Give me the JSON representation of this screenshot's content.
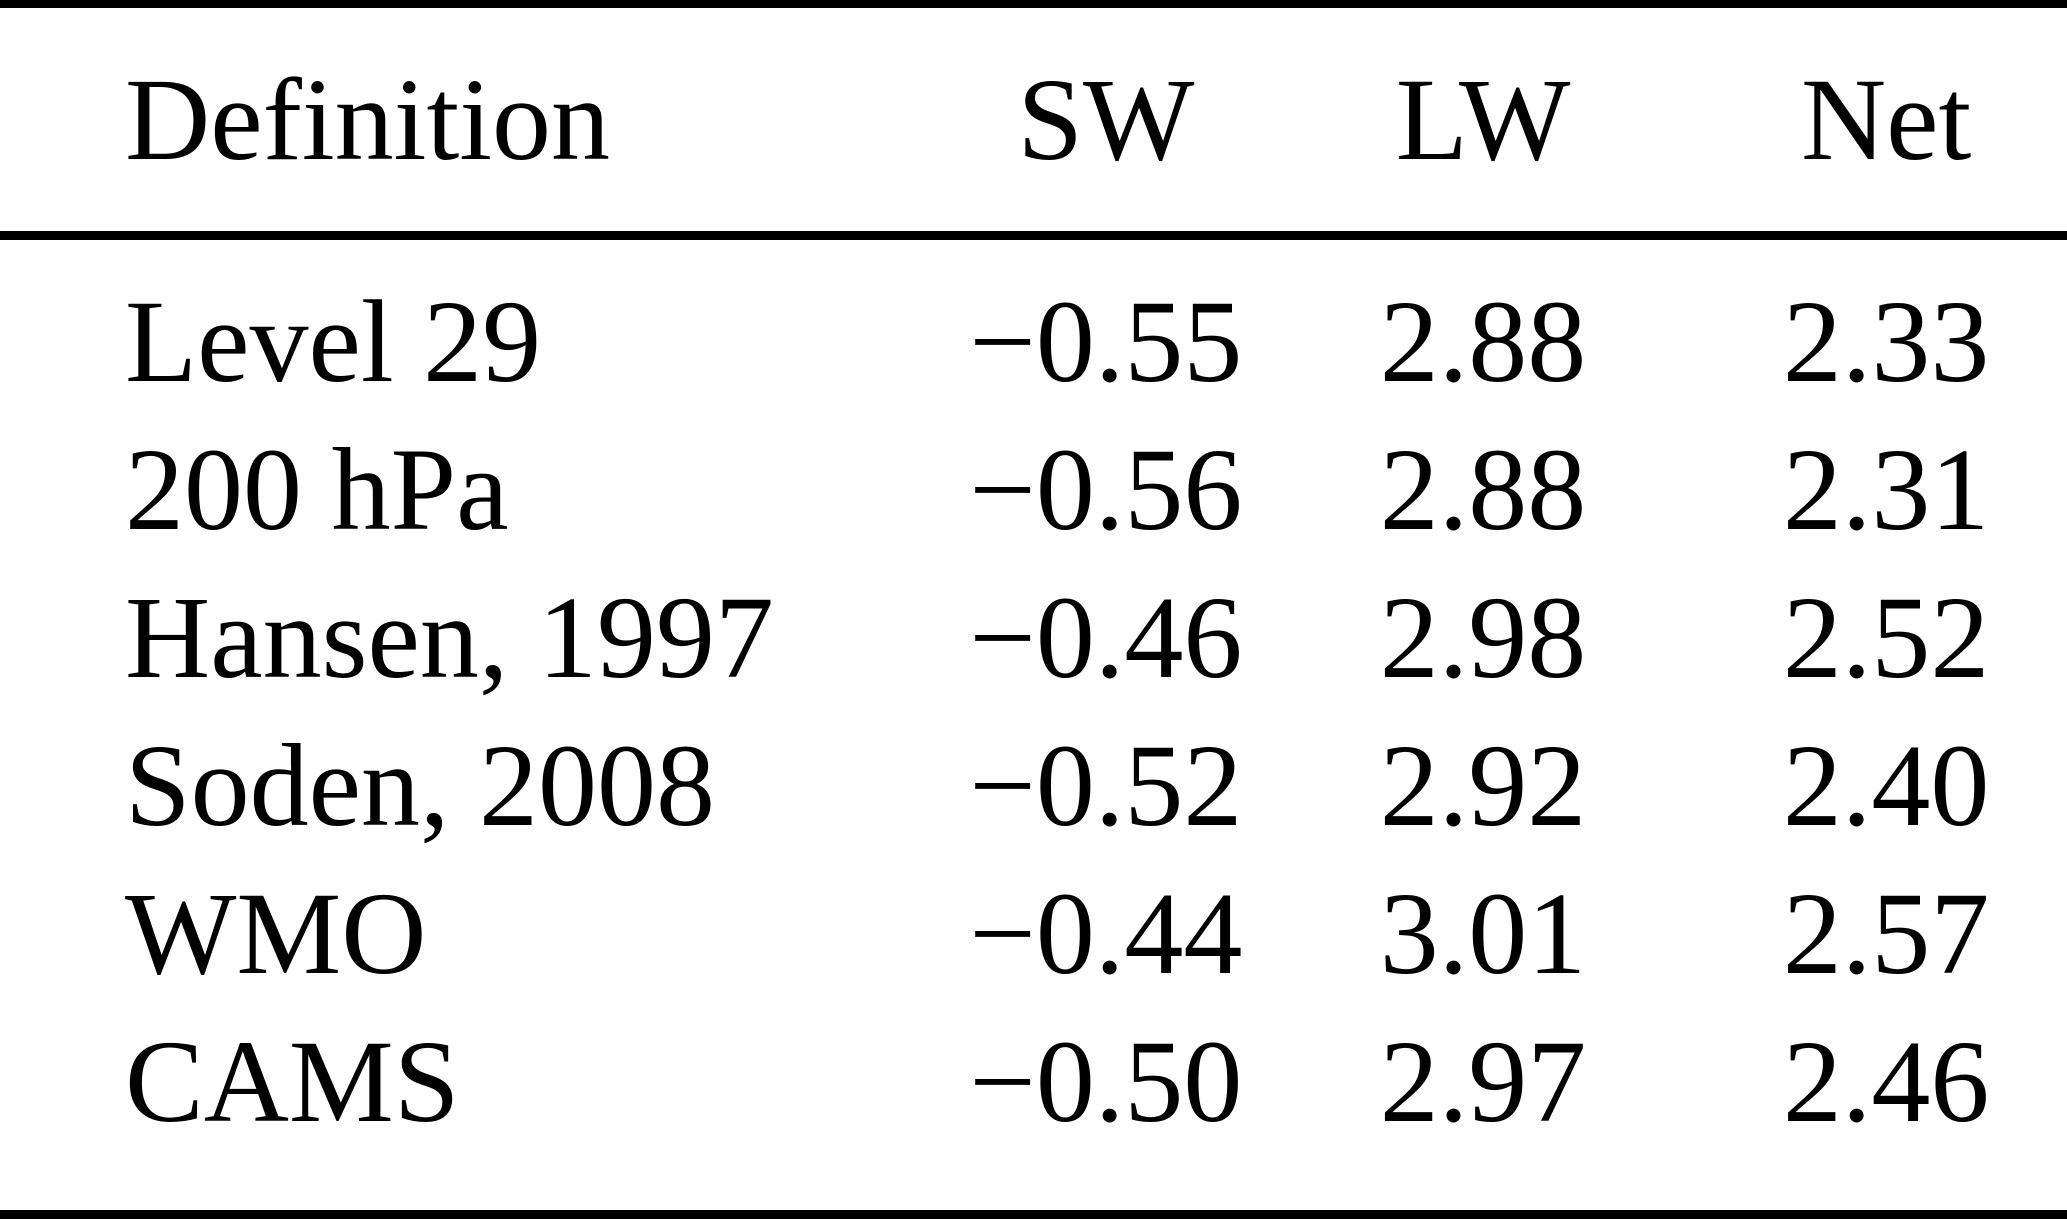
{
  "table": {
    "columns": [
      "Definition",
      "SW",
      "LW",
      "Net"
    ],
    "rows": [
      {
        "definition": "Level 29",
        "sw": "−0.55",
        "lw": "2.88",
        "net": "2.33"
      },
      {
        "definition": "200 hPa",
        "sw": "−0.56",
        "lw": "2.88",
        "net": "2.31"
      },
      {
        "definition": "Hansen, 1997",
        "sw": "−0.46",
        "lw": "2.98",
        "net": "2.52"
      },
      {
        "definition": "Soden, 2008",
        "sw": "−0.52",
        "lw": "2.92",
        "net": "2.40"
      },
      {
        "definition": "WMO",
        "sw": "−0.44",
        "lw": "3.01",
        "net": "2.57"
      },
      {
        "definition": "CAMS",
        "sw": "−0.50",
        "lw": "2.97",
        "net": "2.46"
      }
    ],
    "colors": {
      "text": "#000000",
      "background": "#ffffff",
      "rule": "#000000"
    }
  }
}
